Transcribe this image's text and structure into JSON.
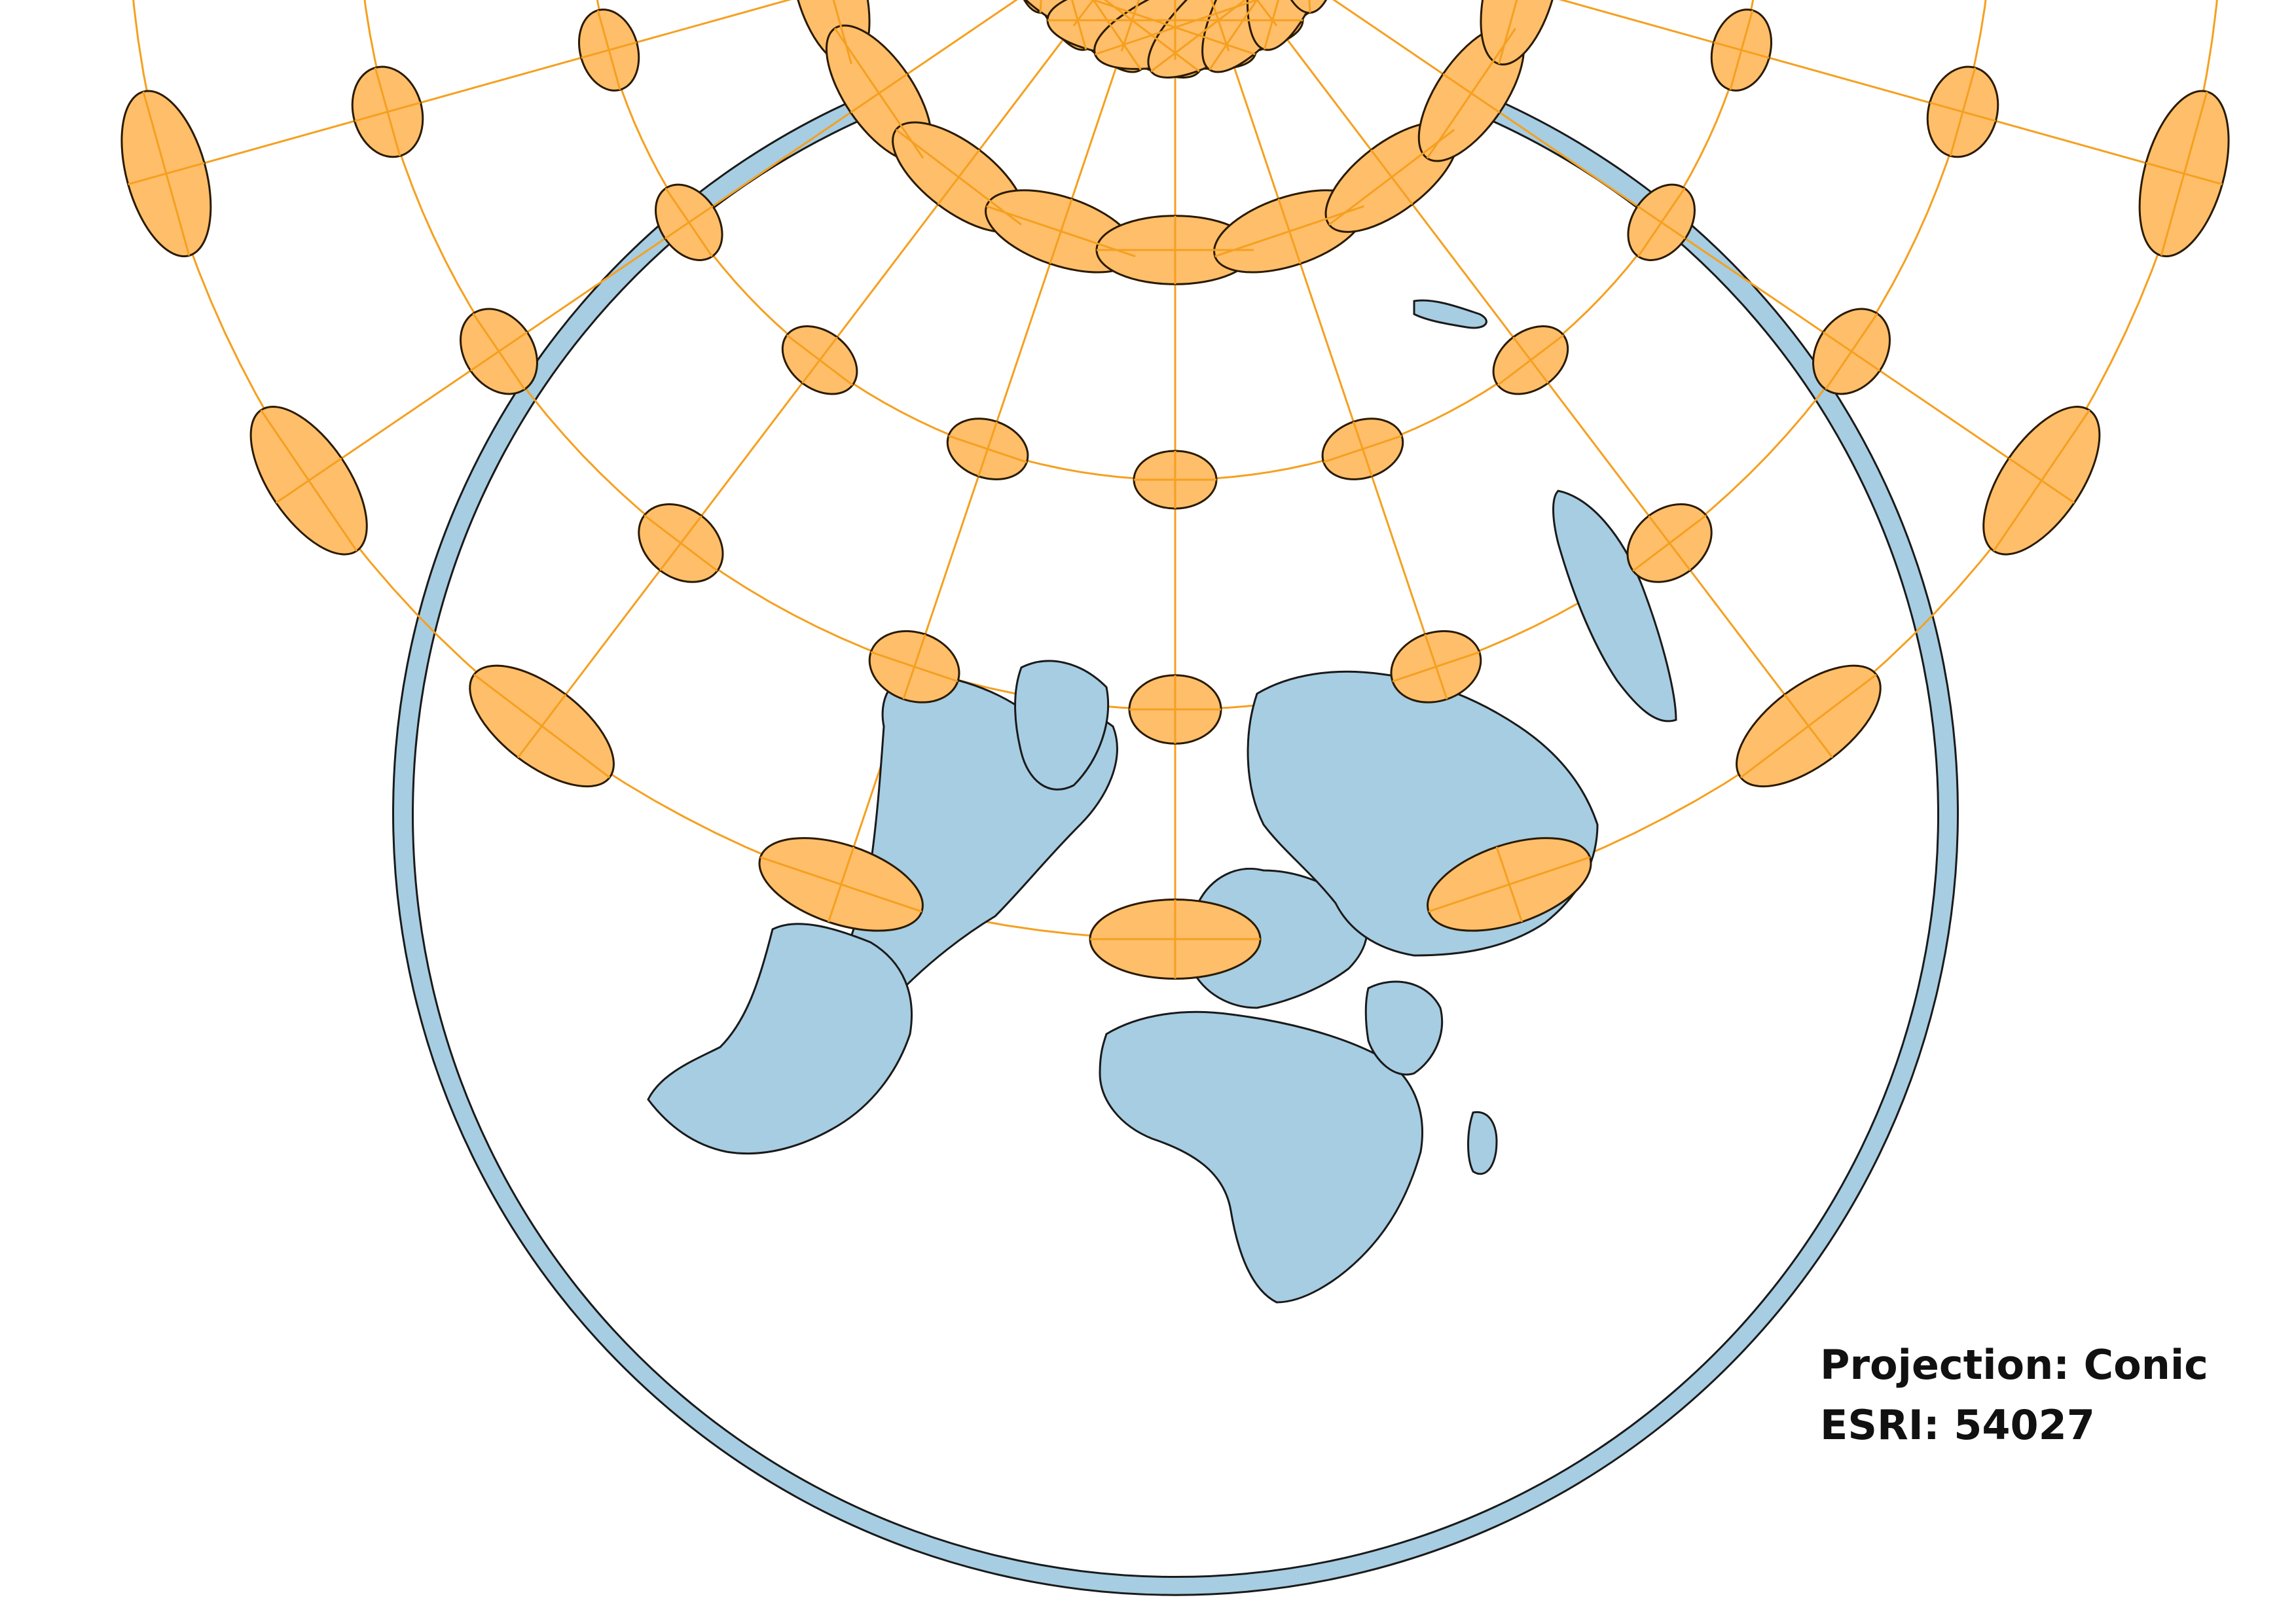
{
  "projection_label": "Projection: Conic",
  "crs_label": "ESRI: 54027",
  "colors": {
    "background": "#ffffff",
    "land": "#a6cde2",
    "outline": "#1a1a1a",
    "ellipse_fill": "#ffbe6a",
    "ellipse_stroke": "#2a1a00",
    "graticule": "#f5a020"
  },
  "map": {
    "projection": "Equidistant Conic (ESRI:54027)",
    "features": [
      "land",
      "country-borders",
      "graticule",
      "tissot-indicatrices"
    ],
    "tissot_latitudes": [
      60,
      30,
      0,
      -30,
      -60
    ],
    "tissot_longitudes": [
      -180,
      -150,
      -120,
      -90,
      -60,
      -30,
      0,
      30,
      60,
      90,
      120,
      150,
      180
    ],
    "ellipse_icon": "tissot-ellipse-icon"
  }
}
